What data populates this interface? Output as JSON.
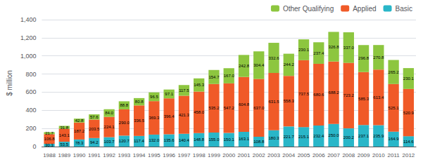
{
  "chart_data": {
    "type": "bar",
    "stacked": true,
    "data_labels": true,
    "grid": true,
    "legend": "upper right",
    "ylabel": "$ million",
    "categories": [
      "1988",
      "1989",
      "1990",
      "1991",
      "1992",
      "1993",
      "1994",
      "1995",
      "1996",
      "1997",
      "1998",
      "1999",
      "2000",
      "2001",
      "2002",
      "2003",
      "2004",
      "2005",
      "2006",
      "2007",
      "2008",
      "2009",
      "2010",
      "2011",
      "2012"
    ],
    "series": [
      {
        "name": "Basic",
        "color": "#29b6c8",
        "values": [
          30.3,
          53.5,
          78.3,
          94.2,
          103.7,
          120.7,
          117.4,
          132.0,
          135.6,
          140.4,
          148.8,
          155.0,
          150.1,
          163.1,
          108.8,
          180.3,
          221.7,
          215.1,
          232.4,
          250.0,
          200.2,
          237.1,
          235.9,
          164.9,
          114.6
        ],
        "value_labels": [
          "30.3",
          "53.5",
          "78.3",
          "94.2",
          "103.7",
          "120.7",
          "117.4",
          "132.0",
          "135.6",
          "140.4",
          "148.8",
          "155.0",
          "150.1",
          "163.1",
          "108.8",
          "180.3",
          "221.7",
          "215.1",
          "232.4",
          "250.0",
          "200.2",
          "237.1",
          "235.9",
          "164.9",
          "114.6"
        ]
      },
      {
        "name": "Applied",
        "color": "#f05a28",
        "values": [
          106.8,
          143.1,
          187.2,
          203.5,
          224.1,
          290.0,
          336.5,
          369.3,
          396.4,
          421.3,
          458.0,
          535.2,
          547.2,
          604.8,
          637.0,
          631.5,
          558.3,
          737.5,
          680.6,
          688.2,
          723.2,
          585.3,
          613.4,
          525.1,
          520.9
        ],
        "value_labels": [
          "106.8",
          "143.1",
          "187.2",
          "203.5",
          "224.1",
          "290.0",
          "336.5",
          "369.3",
          "396.4",
          "421.3",
          "458.0",
          "535.2",
          "547.2",
          "604.8",
          "637.0",
          "631.5",
          "558.3",
          "737.5",
          "680.6",
          "688.2",
          "723.2",
          "585.3",
          "613.4",
          "525.1",
          "520.9"
        ]
      },
      {
        "name": "Other Qualifying",
        "color": "#8dc63f",
        "values": [
          21.7,
          31.8,
          42.8,
          57.6,
          84.0,
          88.8,
          80.8,
          96.5,
          97.1,
          117.5,
          145.3,
          154.7,
          167.0,
          242.8,
          304.4,
          332.6,
          244.2,
          230.1,
          237.4,
          326.8,
          337.0,
          296.8,
          270.8,
          265.2,
          230.1
        ],
        "value_labels": [
          "21.7",
          "31.8",
          "42.8",
          "57.6",
          "84.0",
          "88.8",
          "80.8",
          "96.5",
          "97.1",
          "117.5",
          "145.3",
          "154.7",
          "167.0",
          "242.8",
          "304.4",
          "332.6",
          "244.2",
          "230.1",
          "237.4",
          "326.8",
          "337.0",
          "296.8",
          "270.8",
          "265.2",
          "230.1"
        ]
      }
    ],
    "ylim": [
      0,
      1400
    ],
    "yticks": [
      0,
      200,
      400,
      600,
      800,
      {
        "value": 1000,
        "label": "1,000"
      },
      {
        "value": 1200,
        "label": "1,200"
      },
      {
        "value": 1400,
        "label": "1,400"
      }
    ]
  }
}
